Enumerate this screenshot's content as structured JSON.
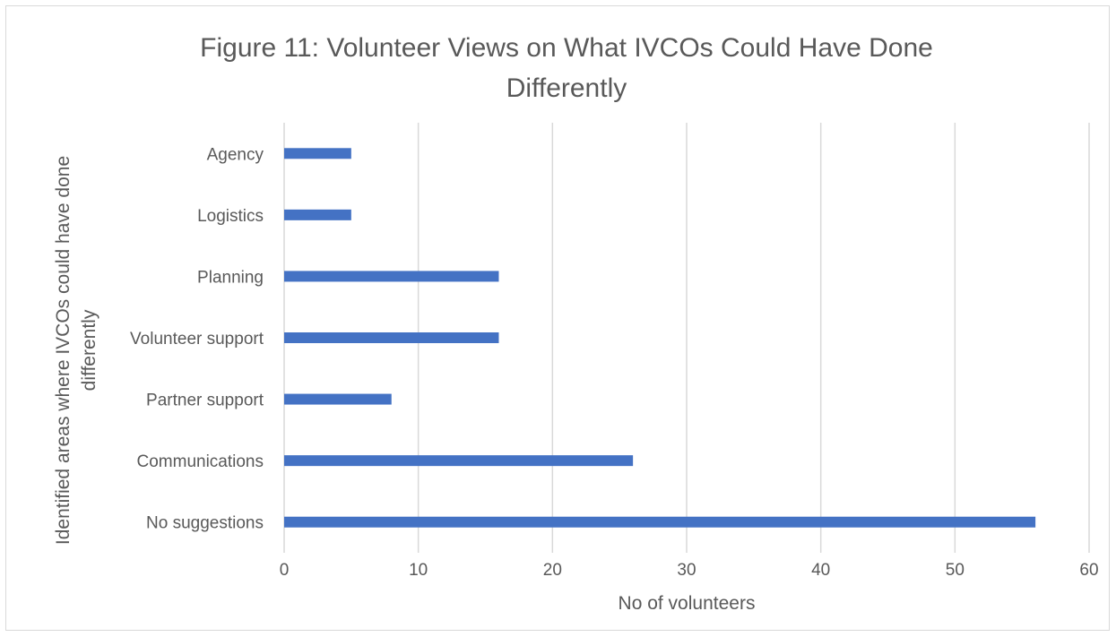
{
  "chart_data": {
    "type": "bar",
    "orientation": "horizontal",
    "title_lines": [
      "Figure 11: Volunteer Views on What IVCOs Could Have Done",
      "Differently"
    ],
    "xlabel": "No of volunteers",
    "ylabel_lines": [
      "Identified areas where IVCOs could have done",
      "differently"
    ],
    "categories": [
      "Agency",
      "Logistics",
      "Planning",
      "Volunteer support",
      "Partner support",
      "Communications",
      "No suggestions"
    ],
    "values": [
      5,
      5,
      16,
      16,
      8,
      26,
      56
    ],
    "xlim": [
      0,
      60
    ],
    "xticks": [
      "0",
      "10",
      "20",
      "30",
      "40",
      "50",
      "60"
    ],
    "grid": "vertical",
    "legend": "none",
    "colors": {
      "bar": "#4472c4",
      "grid": "#d9d9d9",
      "text": "#595959"
    }
  }
}
